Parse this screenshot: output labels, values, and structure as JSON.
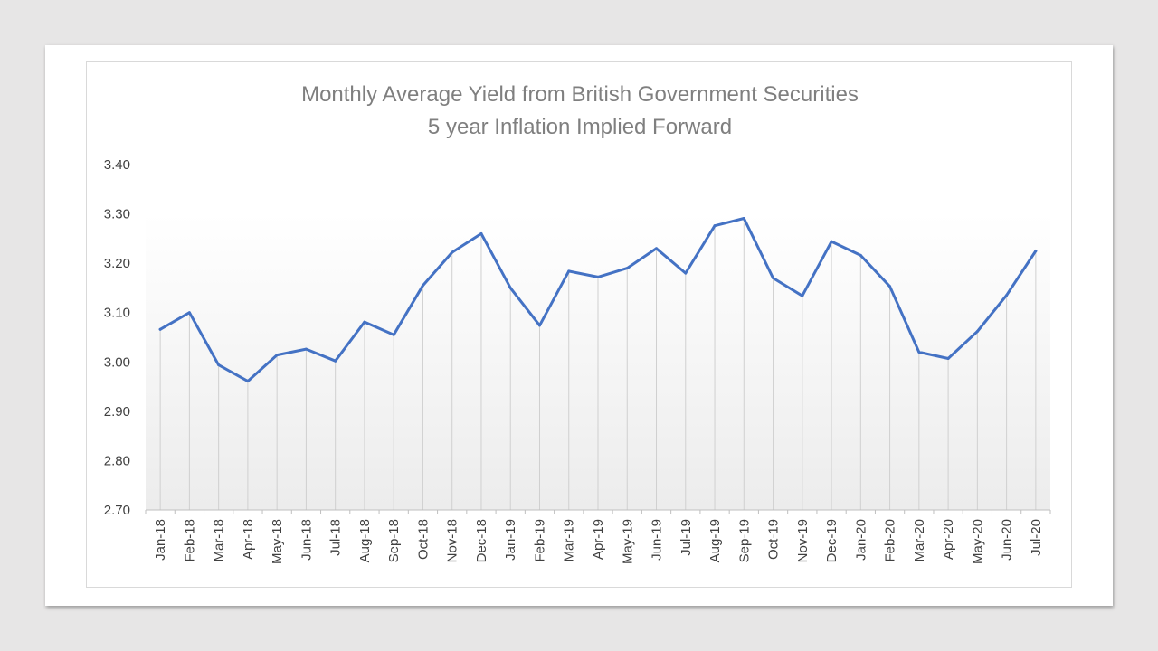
{
  "chart_data": {
    "type": "line",
    "title": "Monthly Average Yield from British Government Securities",
    "subtitle": "5 year Inflation Implied Forward",
    "xlabel": "",
    "ylabel": "",
    "ylim": [
      2.7,
      3.4
    ],
    "yticks": [
      "3.40",
      "3.30",
      "3.20",
      "3.10",
      "3.00",
      "2.90",
      "2.80",
      "2.70"
    ],
    "categories": [
      "Jan-18",
      "Feb-18",
      "Mar-18",
      "Apr-18",
      "May-18",
      "Jun-18",
      "Jul-18",
      "Aug-18",
      "Sep-18",
      "Oct-18",
      "Nov-18",
      "Dec-18",
      "Jan-19",
      "Feb-19",
      "Mar-19",
      "Apr-19",
      "May-19",
      "Jun-19",
      "Jul-19",
      "Aug-19",
      "Sep-19",
      "Oct-19",
      "Nov-19",
      "Dec-19",
      "Jan-20",
      "Feb-20",
      "Mar-20",
      "Apr-20",
      "May-20",
      "Jun-20",
      "Jul-20"
    ],
    "series": [
      {
        "values": [
          3.066,
          3.1,
          2.994,
          2.961,
          3.014,
          3.026,
          3.002,
          3.081,
          3.055,
          3.155,
          3.222,
          3.26,
          3.15,
          3.074,
          3.184,
          3.172,
          3.19,
          3.23,
          3.18,
          3.276,
          3.291,
          3.17,
          3.134,
          3.244,
          3.216,
          3.153,
          3.02,
          3.007,
          3.062,
          3.135,
          3.225
        ]
      }
    ],
    "grid": false,
    "legend": "none",
    "colors": {
      "line": "#4472c4",
      "drop_lines": "#d0d0d0",
      "axis": "#bfbfbf",
      "title": "#7f7f7f",
      "ticks": "#404040"
    }
  }
}
